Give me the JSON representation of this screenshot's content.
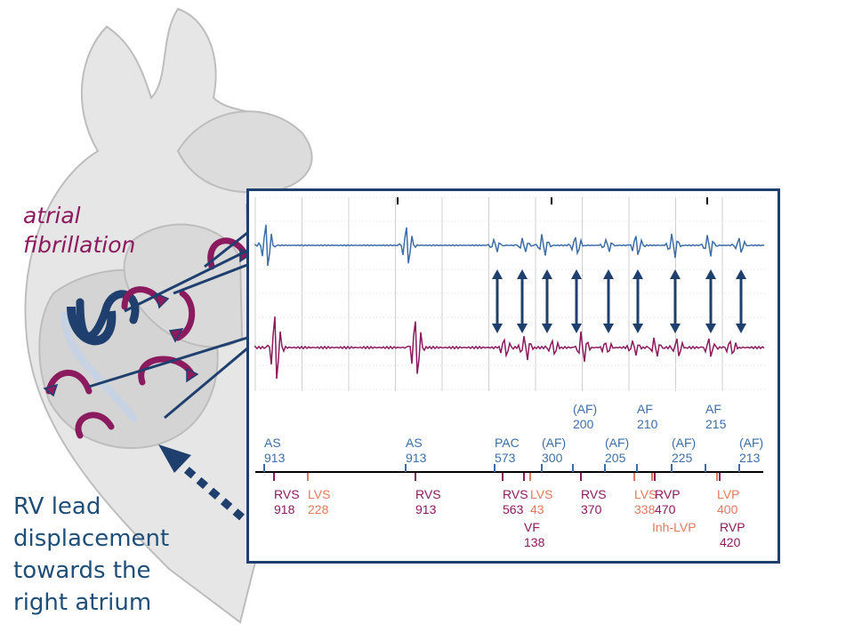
{
  "left_labels": {
    "atrial_line1": "atrial",
    "atrial_line2": "fibrillation",
    "rv_lines": [
      "RV lead",
      "displacement",
      "towards the",
      "right atrium"
    ]
  },
  "colors": {
    "atrial": "#3d6ea8",
    "ventricular": "#8b1a5e",
    "lv": "#e07a5f",
    "frame": "#1f3f6e"
  },
  "markers_top": [
    {
      "name": "AS",
      "value": "913"
    },
    {
      "name": "AS",
      "value": "913"
    },
    {
      "name": "PAC",
      "value": "573"
    },
    {
      "name": "(AF)",
      "value": "300"
    },
    {
      "name": "(AF)",
      "value": "200"
    },
    {
      "name": "(AF)",
      "value": "205"
    },
    {
      "name": "AF",
      "value": "210"
    },
    {
      "name": "(AF)",
      "value": "225"
    },
    {
      "name": "AF",
      "value": "215"
    },
    {
      "name": "(AF)",
      "value": "213"
    }
  ],
  "markers_bottom": [
    {
      "name": "RVS",
      "value": "918"
    },
    {
      "name": "LVS",
      "value": "228"
    },
    {
      "name": "RVS",
      "value": "913"
    },
    {
      "name": "RVS",
      "value": "563"
    },
    {
      "name": "LVS",
      "value": "43"
    },
    {
      "name": "VF",
      "value": "138"
    },
    {
      "name": "RVS",
      "value": "370"
    },
    {
      "name": "LVS",
      "value": "338"
    },
    {
      "name": "RVP",
      "value": "470"
    },
    {
      "name": "Inh-LVP",
      "value": ""
    },
    {
      "name": "LVP",
      "value": "400"
    },
    {
      "name": "RVP",
      "value": "420"
    }
  ]
}
